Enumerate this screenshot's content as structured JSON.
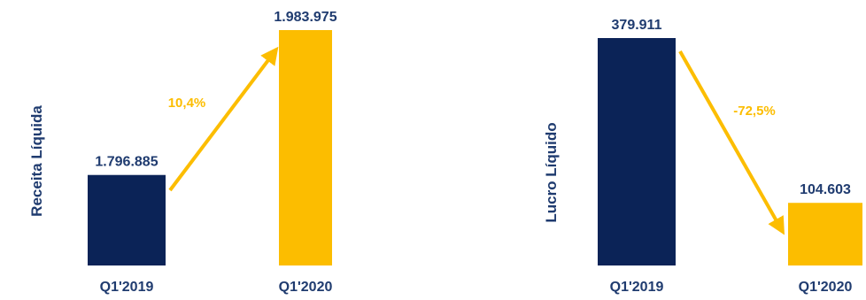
{
  "colors": {
    "navy": "#0b2357",
    "gold": "#fcbd00",
    "text": "#1f3b6f"
  },
  "chart_data": [
    {
      "type": "bar",
      "ylabel": "Receita Líquida",
      "categories": [
        "Q1'2019",
        "Q1'2020"
      ],
      "values": [
        1796885,
        1983975
      ],
      "value_labels": [
        "1.796.885",
        "1.983.975"
      ],
      "change_label": "10,4%",
      "grid": false
    },
    {
      "type": "bar",
      "ylabel": "Lucro Líquido",
      "categories": [
        "Q1'2019",
        "Q1'2020"
      ],
      "values": [
        379911,
        104603
      ],
      "value_labels": [
        "379.911",
        "104.603"
      ],
      "change_label": "-72,5%",
      "grid": false
    }
  ]
}
